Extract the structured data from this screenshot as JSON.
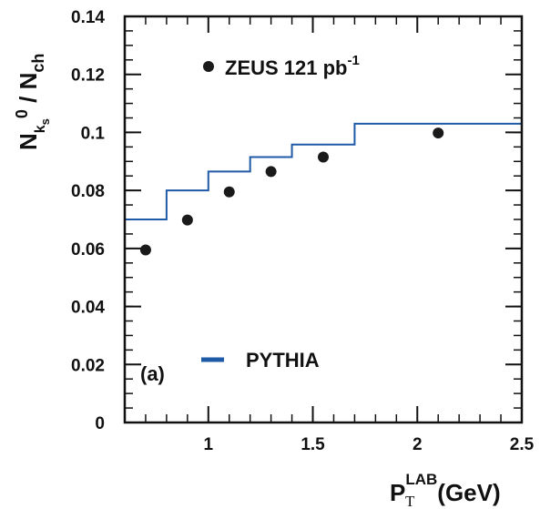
{
  "chart_data": {
    "type": "scatter",
    "panel_label": "(a)",
    "xlabel": {
      "base": "P",
      "sub": "T",
      "sup": "LAB",
      "unit": "(GeV)"
    },
    "ylabel": {
      "part1": "N",
      "sub": "k",
      "subsub": "s",
      "sup": "0",
      "part2": " / N",
      "sub2": "ch"
    },
    "xlim": [
      0.6,
      2.5
    ],
    "ylim": [
      0,
      0.14
    ],
    "x_ticks": [
      {
        "value": 1,
        "label": "1"
      },
      {
        "value": 1.5,
        "label": "1.5"
      },
      {
        "value": 2,
        "label": "2"
      },
      {
        "value": 2.5,
        "label": "2.5"
      }
    ],
    "y_ticks": [
      {
        "value": 0,
        "label": "0"
      },
      {
        "value": 0.02,
        "label": "0.02"
      },
      {
        "value": 0.04,
        "label": "0.04"
      },
      {
        "value": 0.06,
        "label": "0.06"
      },
      {
        "value": 0.08,
        "label": "0.08"
      },
      {
        "value": 0.1,
        "label": "0.1"
      },
      {
        "value": 0.12,
        "label": "0.12"
      },
      {
        "value": 0.14,
        "label": "0.14"
      }
    ],
    "series": [
      {
        "name": "ZEUS 121 pb",
        "name_sup": "-1",
        "kind": "points",
        "color": "#1a1a1a",
        "x": [
          0.7,
          0.9,
          1.1,
          1.3,
          1.55,
          2.1
        ],
        "y": [
          0.0595,
          0.0698,
          0.0795,
          0.0865,
          0.0915,
          0.0998
        ]
      },
      {
        "name": "PYTHIA",
        "kind": "histogram",
        "color": "#1f5aa6",
        "bin_edges": [
          0.6,
          0.8,
          1.0,
          1.2,
          1.4,
          1.7,
          2.5
        ],
        "values": [
          0.07,
          0.08,
          0.0865,
          0.0915,
          0.0958,
          0.103
        ]
      }
    ]
  }
}
